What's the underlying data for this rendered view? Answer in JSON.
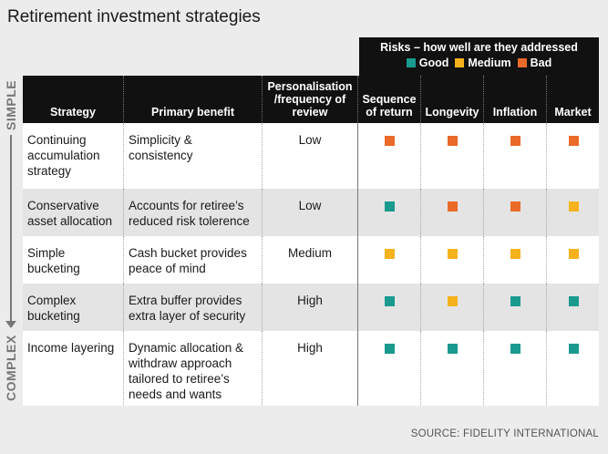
{
  "title": "Retirement investment strategies",
  "risk_header": {
    "title": "Risks – how well are they addressed",
    "legend": [
      {
        "label": "Good",
        "color": "#1a9a8f"
      },
      {
        "label": "Medium",
        "color": "#f5b21c"
      },
      {
        "label": "Bad",
        "color": "#ea6a2a"
      }
    ]
  },
  "axis": {
    "top": "SIMPLE",
    "bottom": "COMPLEX"
  },
  "columns": [
    "Strategy",
    "Primary benefit",
    "Personalisation /frequency of review",
    "Sequence of return",
    "Longevity",
    "Inflation",
    "Market"
  ],
  "rating_colors": {
    "good": "#1a9a8f",
    "medium": "#f5b21c",
    "bad": "#ea6a2a"
  },
  "rows": [
    {
      "strategy": "Continuing accumulation strategy",
      "benefit": "Simplicity & consistency",
      "review": "Low",
      "risks": [
        "bad",
        "bad",
        "bad",
        "bad"
      ]
    },
    {
      "strategy": "Conservative asset allocation",
      "benefit": "Accounts for retiree’s reduced risk tolerence",
      "review": "Low",
      "risks": [
        "good",
        "bad",
        "bad",
        "medium"
      ]
    },
    {
      "strategy": "Simple bucketing",
      "benefit": "Cash bucket provides peace of mind",
      "review": "Medium",
      "risks": [
        "medium",
        "medium",
        "medium",
        "medium"
      ]
    },
    {
      "strategy": "Complex bucketing",
      "benefit": "Extra buffer provides extra layer of security",
      "review": "High",
      "risks": [
        "good",
        "medium",
        "good",
        "good"
      ]
    },
    {
      "strategy": "Income layering",
      "benefit": "Dynamic allocation & withdraw approach tailored to retiree’s needs and wants",
      "review": "High",
      "risks": [
        "good",
        "good",
        "good",
        "good"
      ]
    }
  ],
  "source": "SOURCE: FIDELITY INTERNATIONAL"
}
